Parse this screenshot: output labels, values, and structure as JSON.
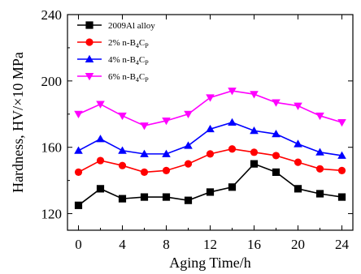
{
  "chart_data": {
    "type": "line",
    "xlabel": "Aging Time/h",
    "ylabel": "Hardness, HV/×10 MPa",
    "xlim": [
      -1,
      25
    ],
    "ylim": [
      110,
      240
    ],
    "xticks": [
      0,
      4,
      8,
      12,
      16,
      20,
      24
    ],
    "yticks": [
      120,
      160,
      200,
      240
    ],
    "x": [
      0,
      2,
      4,
      6,
      8,
      10,
      12,
      14,
      16,
      18,
      20,
      22,
      24
    ],
    "legend_position": "top-left",
    "grid": false,
    "series": [
      {
        "name": "2009Al alloy",
        "name_base": "2009Al alloy",
        "color": "#000000",
        "marker": "square",
        "values": [
          125,
          135,
          129,
          130,
          130,
          128,
          133,
          136,
          150,
          145,
          135,
          132,
          130
        ]
      },
      {
        "name": "2% n-B4CP",
        "name_base": "2% n-B",
        "name_sub1": "4",
        "name_mid": "C",
        "name_sub2": "P",
        "color": "#ff0000",
        "marker": "circle",
        "values": [
          145,
          152,
          149,
          145,
          146,
          150,
          156,
          159,
          157,
          155,
          151,
          147,
          146
        ]
      },
      {
        "name": "4% n-B4CP",
        "name_base": "4% n-B",
        "name_sub1": "4",
        "name_mid": "C",
        "name_sub2": "P",
        "color": "#0000ff",
        "marker": "triangle",
        "values": [
          158,
          165,
          158,
          156,
          156,
          161,
          171,
          175,
          170,
          168,
          162,
          157,
          155
        ]
      },
      {
        "name": "6% n-B4CP",
        "name_base": "6% n-B",
        "name_sub1": "4",
        "name_mid": "C",
        "name_sub2": "P",
        "color": "#ff00ff",
        "marker": "triangle-down",
        "values": [
          180,
          186,
          179,
          173,
          176,
          180,
          190,
          194,
          192,
          187,
          185,
          179,
          175
        ]
      }
    ]
  }
}
